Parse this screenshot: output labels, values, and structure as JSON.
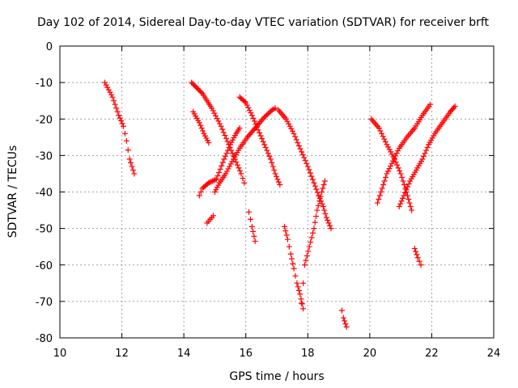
{
  "chart_data": {
    "type": "scatter",
    "title": "Day 102 of 2014, Sidereal Day-to-day VTEC variation (SDTVAR) for receiver brft",
    "xlabel": "GPS time / hours",
    "ylabel": "SDTVAR / TECUs",
    "xlim": [
      10,
      24
    ],
    "ylim": [
      -80,
      0
    ],
    "xticks": [
      "10",
      "12",
      "14",
      "16",
      "18",
      "20",
      "22",
      "24"
    ],
    "yticks": [
      "0",
      "-10",
      "-20",
      "-30",
      "-40",
      "-50",
      "-60",
      "-70",
      "-80"
    ],
    "grid": true,
    "marker": "+",
    "color": "#ff0000",
    "tracks": [
      {
        "points": [
          [
            11.45,
            -10
          ],
          [
            11.7,
            -14
          ],
          [
            11.9,
            -19
          ],
          [
            12.05,
            -22
          ],
          [
            12.15,
            -26
          ],
          [
            12.25,
            -31
          ],
          [
            12.4,
            -35
          ]
        ]
      },
      {
        "points": [
          [
            14.25,
            -10
          ],
          [
            14.6,
            -13
          ],
          [
            14.9,
            -17
          ],
          [
            15.2,
            -22
          ],
          [
            15.45,
            -27
          ],
          [
            15.65,
            -31
          ],
          [
            15.85,
            -35
          ],
          [
            15.95,
            -37.5
          ]
        ]
      },
      {
        "points": [
          [
            14.3,
            -18
          ],
          [
            14.5,
            -21
          ],
          [
            14.65,
            -24
          ],
          [
            14.8,
            -26.5
          ]
        ]
      },
      {
        "points": [
          [
            14.5,
            -41
          ],
          [
            14.6,
            -39
          ],
          [
            14.8,
            -37.5
          ],
          [
            15.05,
            -36.5
          ],
          [
            15.3,
            -31
          ],
          [
            15.5,
            -27
          ],
          [
            15.65,
            -24.5
          ],
          [
            15.8,
            -22.5
          ]
        ]
      },
      {
        "points": [
          [
            14.75,
            -48.5
          ],
          [
            14.85,
            -47.5
          ],
          [
            14.95,
            -46.5
          ]
        ]
      },
      {
        "points": [
          [
            15.0,
            -40
          ],
          [
            15.15,
            -37.5
          ],
          [
            15.35,
            -35
          ],
          [
            15.6,
            -31
          ],
          [
            15.8,
            -28
          ],
          [
            16.05,
            -25
          ],
          [
            16.35,
            -22
          ],
          [
            16.6,
            -19.5
          ],
          [
            16.85,
            -17.5
          ],
          [
            16.95,
            -17
          ]
        ]
      },
      {
        "points": [
          [
            15.8,
            -14
          ],
          [
            16.0,
            -15.5
          ],
          [
            16.2,
            -19
          ],
          [
            16.4,
            -23
          ],
          [
            16.6,
            -27
          ],
          [
            16.8,
            -31
          ],
          [
            16.95,
            -35
          ],
          [
            17.1,
            -38
          ]
        ]
      },
      {
        "points": [
          [
            16.1,
            -45.5
          ],
          [
            16.2,
            -49.5
          ],
          [
            16.3,
            -53.5
          ]
        ]
      },
      {
        "points": [
          [
            17.05,
            -17.5
          ],
          [
            17.3,
            -20
          ],
          [
            17.55,
            -24
          ],
          [
            17.8,
            -29
          ],
          [
            18.0,
            -33
          ],
          [
            18.2,
            -37.5
          ],
          [
            18.35,
            -41
          ],
          [
            18.5,
            -44
          ],
          [
            18.6,
            -47
          ],
          [
            18.75,
            -50
          ]
        ]
      },
      {
        "points": [
          [
            17.25,
            -49.5
          ],
          [
            17.35,
            -53
          ],
          [
            17.45,
            -57
          ],
          [
            17.55,
            -61
          ],
          [
            17.65,
            -65
          ],
          [
            17.75,
            -68
          ],
          [
            17.85,
            -72
          ]
        ]
      },
      {
        "points": [
          [
            17.8,
            -70.5
          ],
          [
            17.85,
            -65
          ],
          [
            17.9,
            -60
          ],
          [
            18.05,
            -55
          ],
          [
            18.2,
            -50
          ],
          [
            18.3,
            -45
          ],
          [
            18.45,
            -40
          ],
          [
            18.55,
            -37
          ]
        ]
      },
      {
        "points": [
          [
            19.1,
            -72.5
          ],
          [
            19.15,
            -74.5
          ],
          [
            19.25,
            -77
          ]
        ]
      },
      {
        "points": [
          [
            20.05,
            -20
          ],
          [
            20.3,
            -22.5
          ],
          [
            20.55,
            -27
          ],
          [
            20.8,
            -31
          ],
          [
            21.0,
            -35
          ],
          [
            21.15,
            -39
          ],
          [
            21.25,
            -42
          ],
          [
            21.35,
            -45
          ]
        ]
      },
      {
        "points": [
          [
            20.25,
            -43
          ],
          [
            20.4,
            -39
          ],
          [
            20.55,
            -35
          ],
          [
            20.75,
            -31.5
          ],
          [
            20.95,
            -28
          ],
          [
            21.2,
            -25
          ],
          [
            21.45,
            -22.5
          ],
          [
            21.7,
            -19
          ],
          [
            21.95,
            -16
          ]
        ]
      },
      {
        "points": [
          [
            20.95,
            -44
          ],
          [
            21.1,
            -41
          ],
          [
            21.3,
            -37
          ],
          [
            21.5,
            -34
          ],
          [
            21.7,
            -31
          ],
          [
            21.9,
            -27
          ],
          [
            22.1,
            -24
          ],
          [
            22.35,
            -21
          ],
          [
            22.6,
            -18
          ],
          [
            22.75,
            -16.5
          ]
        ]
      },
      {
        "points": [
          [
            21.45,
            -55.5
          ],
          [
            21.55,
            -58
          ],
          [
            21.65,
            -60
          ]
        ]
      }
    ]
  }
}
